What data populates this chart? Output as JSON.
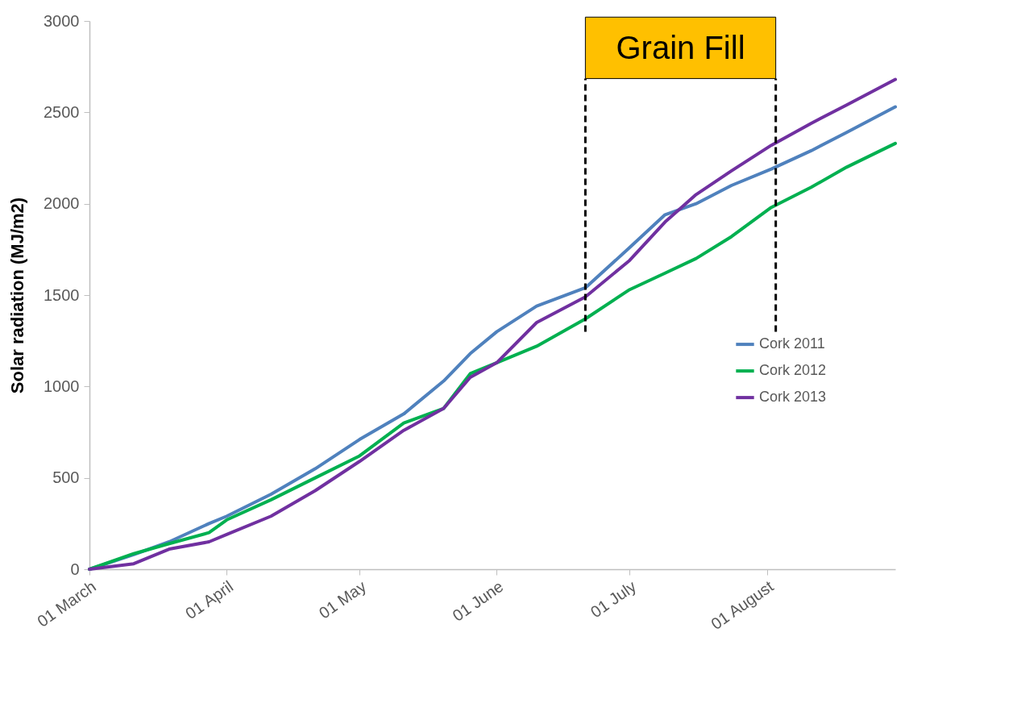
{
  "chart_data": {
    "type": "line",
    "ylabel": "Solar radiation (MJ/m2)",
    "x": [
      "--03-01",
      "--03-11",
      "--03-19",
      "--03-28",
      "--04-01",
      "--04-11",
      "--04-21",
      "--05-01",
      "--05-11",
      "--05-20",
      "--05-26",
      "--06-01",
      "--06-10",
      "--06-21",
      "--07-01",
      "--07-09",
      "--07-16",
      "--07-24",
      "--08-02",
      "--08-11",
      "--08-19",
      "--08-30"
    ],
    "series": [
      {
        "name": "Cork 2011",
        "color": "#4f81bd",
        "values": [
          0,
          80,
          150,
          250,
          290,
          410,
          550,
          710,
          850,
          1030,
          1180,
          1300,
          1440,
          1540,
          1760,
          1940,
          2000,
          2100,
          2190,
          2290,
          2390,
          2530
        ]
      },
      {
        "name": "Cork 2012",
        "color": "#00b050",
        "values": [
          0,
          85,
          140,
          200,
          270,
          380,
          500,
          620,
          800,
          880,
          1070,
          1130,
          1220,
          1370,
          1530,
          1620,
          1700,
          1820,
          1980,
          2090,
          2200,
          2330
        ]
      },
      {
        "name": "Cork 2013",
        "color": "#7030a0",
        "values": [
          0,
          30,
          110,
          150,
          190,
          290,
          430,
          590,
          760,
          880,
          1050,
          1130,
          1350,
          1490,
          1690,
          1900,
          2050,
          2180,
          2320,
          2440,
          2540,
          2680
        ]
      }
    ],
    "xlim": [
      "--03-01",
      "--08-30"
    ],
    "xticks": [
      {
        "value": "--03-01",
        "label": "01 March"
      },
      {
        "value": "--04-01",
        "label": "01 April"
      },
      {
        "value": "--05-01",
        "label": "01 May"
      },
      {
        "value": "--06-01",
        "label": "01 June"
      },
      {
        "value": "--07-01",
        "label": "01 July"
      },
      {
        "value": "--08-01",
        "label": "01 August"
      }
    ],
    "ylim": [
      0,
      3000
    ],
    "yticks": [
      0,
      500,
      1000,
      1500,
      2000,
      2500,
      3000
    ],
    "bands": [
      {
        "axis": "x",
        "from": "--06-21",
        "to": "--08-03",
        "label": "Grain Fill",
        "color": "#ffc000"
      }
    ],
    "grid": false,
    "legend": "right",
    "line_style": "solid"
  }
}
